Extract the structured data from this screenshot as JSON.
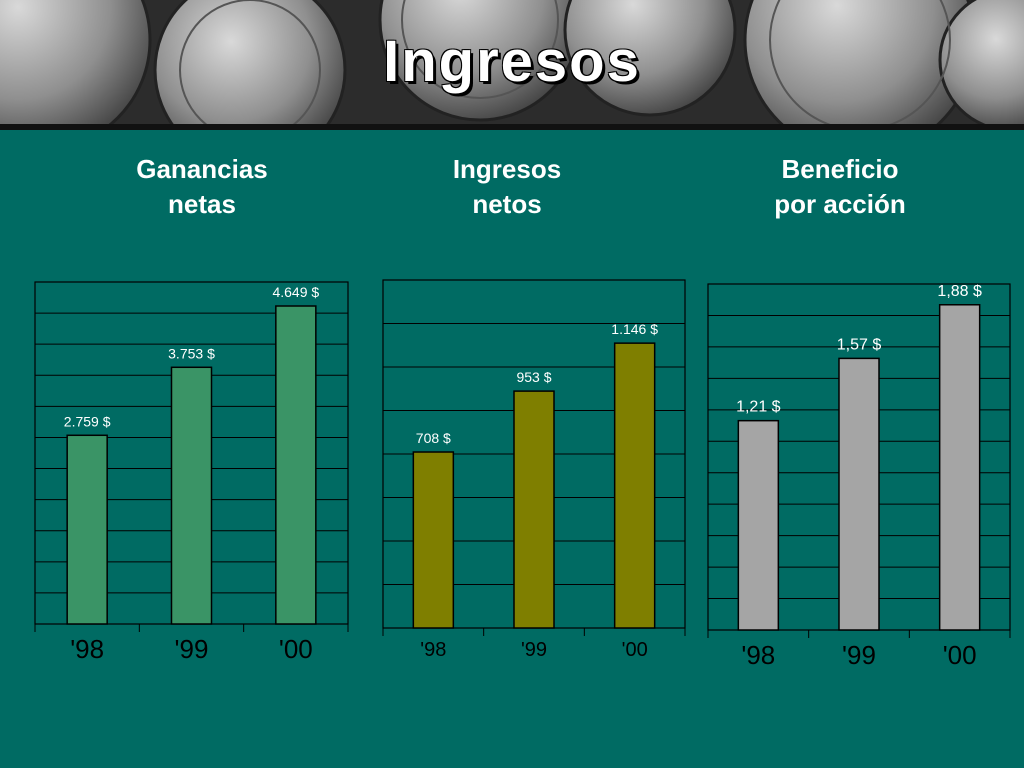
{
  "slide": {
    "title": "Ingresos"
  },
  "colors": {
    "background": "#006b63",
    "grid": "#000000",
    "plot_bg": "#006b63"
  },
  "chart_data": [
    {
      "type": "bar",
      "title_lines": [
        "Ganancias",
        "netas"
      ],
      "categories": [
        "'98",
        "'99",
        "'00"
      ],
      "values": [
        2759,
        3753,
        4649
      ],
      "labels": [
        "2.759 $",
        "3.753 $",
        "4.649 $"
      ],
      "ylim": [
        0,
        5000
      ],
      "grid": true,
      "bar_color": "#3a9466"
    },
    {
      "type": "bar",
      "title_lines": [
        "Ingresos",
        "netos"
      ],
      "categories": [
        "'98",
        "'99",
        "'00"
      ],
      "values": [
        708,
        953,
        1146
      ],
      "labels": [
        "708 $",
        "953 $",
        "1.146 $"
      ],
      "ylim": [
        0,
        1400
      ],
      "grid": true,
      "bar_color": "#7f7f00"
    },
    {
      "type": "bar",
      "title_lines": [
        "Beneficio",
        "por acción"
      ],
      "categories": [
        "'98",
        "'99",
        "'00"
      ],
      "values": [
        1.21,
        1.57,
        1.88
      ],
      "labels": [
        "1,21 $",
        "1,57 $",
        "1,88 $"
      ],
      "ylim": [
        0,
        2
      ],
      "grid": true,
      "bar_color": "#a5a5a5"
    }
  ]
}
